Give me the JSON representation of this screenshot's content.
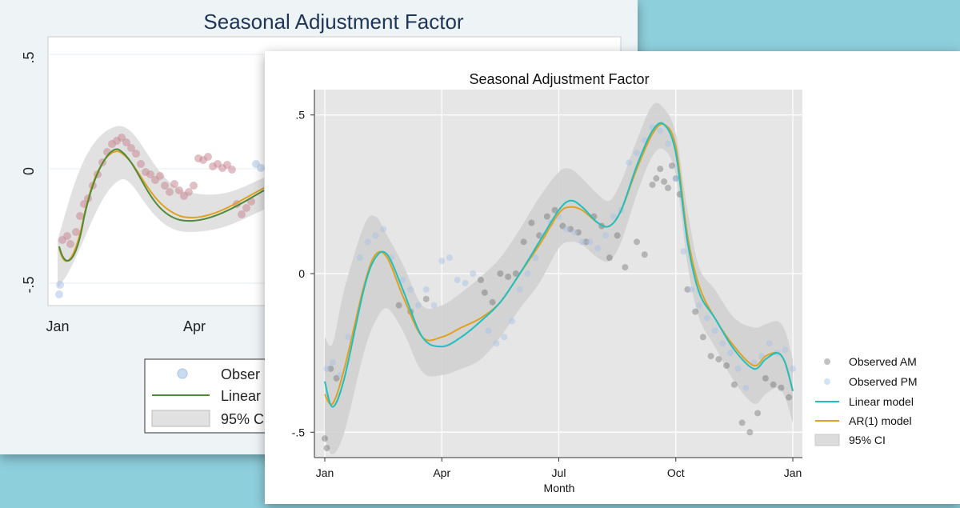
{
  "back_chart": {
    "title": "Seasonal Adjustment Factor",
    "y_ticks": [
      ".5",
      "0",
      "-.5"
    ],
    "x_ticks": [
      "Jan",
      "Apr"
    ],
    "legend": [
      "Obser",
      "Linear",
      "95% C"
    ],
    "colors": {
      "points": "#c98b93",
      "points_alt": "#a9c4e6",
      "linear": "#4f8a3a",
      "ar1": "#e0a020",
      "ci": "#dcdcdc"
    }
  },
  "chart_data": {
    "type": "line",
    "title": "Seasonal Adjustment Factor",
    "xlabel": "Month",
    "ylabel": "",
    "xlim": [
      0,
      12
    ],
    "ylim": [
      -0.58,
      0.58
    ],
    "x_ticks": [
      {
        "pos": 0,
        "label": "Jan"
      },
      {
        "pos": 3,
        "label": "Apr"
      },
      {
        "pos": 6,
        "label": "Jul"
      },
      {
        "pos": 9,
        "label": "Oct"
      },
      {
        "pos": 12,
        "label": "Jan"
      }
    ],
    "y_ticks": [
      {
        "value": 0.5,
        "label": ".5"
      },
      {
        "value": 0,
        "label": "0"
      },
      {
        "value": -0.5,
        "label": "-.5"
      }
    ],
    "grid": true,
    "legend_position": "right",
    "series": [
      {
        "name": "Linear model",
        "color": "#1fbfbf",
        "x": [
          0,
          0.2,
          0.5,
          1.0,
          1.3,
          1.6,
          2.0,
          2.5,
          3.0,
          3.5,
          4.0,
          4.5,
          5.0,
          5.5,
          6.0,
          6.3,
          6.6,
          7.0,
          7.3,
          7.6,
          8.0,
          8.4,
          8.7,
          9.0,
          9.3,
          9.6,
          10.0,
          10.5,
          11.0,
          11.3,
          11.6,
          11.8,
          12.0
        ],
        "y": [
          -0.34,
          -0.42,
          -0.33,
          -0.05,
          0.05,
          0.06,
          -0.05,
          -0.2,
          -0.23,
          -0.2,
          -0.15,
          -0.09,
          0.0,
          0.1,
          0.2,
          0.23,
          0.21,
          0.16,
          0.15,
          0.2,
          0.34,
          0.45,
          0.47,
          0.38,
          0.1,
          -0.06,
          -0.14,
          -0.24,
          -0.3,
          -0.27,
          -0.25,
          -0.28,
          -0.37
        ]
      },
      {
        "name": "AR(1) model",
        "color": "#e0a020",
        "x": [
          0,
          0.2,
          0.5,
          1.0,
          1.3,
          1.6,
          2.0,
          2.5,
          3.0,
          3.5,
          4.0,
          4.5,
          5.0,
          5.5,
          6.0,
          6.3,
          6.6,
          7.0,
          7.3,
          7.6,
          8.0,
          8.4,
          8.7,
          9.0,
          9.3,
          9.6,
          10.0,
          10.5,
          11.0,
          11.3,
          11.6,
          11.8,
          12.0
        ],
        "y": [
          -0.38,
          -0.41,
          -0.3,
          -0.04,
          0.06,
          0.05,
          -0.07,
          -0.2,
          -0.2,
          -0.17,
          -0.14,
          -0.09,
          0.0,
          0.09,
          0.19,
          0.21,
          0.2,
          0.16,
          0.15,
          0.2,
          0.33,
          0.44,
          0.47,
          0.4,
          0.12,
          -0.04,
          -0.14,
          -0.23,
          -0.29,
          -0.26,
          -0.25,
          -0.28,
          -0.37
        ]
      }
    ],
    "ci": {
      "name": "95% CI",
      "color": "#cfcfcf",
      "x": [
        0,
        0.2,
        0.5,
        1.0,
        1.3,
        1.6,
        2.0,
        2.5,
        3.0,
        3.5,
        4.0,
        4.5,
        5.0,
        5.5,
        6.0,
        6.3,
        6.6,
        7.0,
        7.3,
        7.6,
        8.0,
        8.4,
        8.7,
        9.0,
        9.3,
        9.6,
        10.0,
        10.5,
        11.0,
        11.3,
        11.6,
        11.8,
        12.0
      ],
      "upper": [
        -0.2,
        -0.22,
        -0.05,
        0.15,
        0.18,
        0.12,
        0.03,
        -0.1,
        -0.1,
        -0.06,
        -0.01,
        0.05,
        0.14,
        0.24,
        0.32,
        0.33,
        0.3,
        0.25,
        0.23,
        0.29,
        0.42,
        0.53,
        0.52,
        0.44,
        0.2,
        0.02,
        -0.05,
        -0.14,
        -0.17,
        -0.16,
        -0.15,
        -0.18,
        -0.27
      ],
      "lower": [
        -0.52,
        -0.57,
        -0.5,
        -0.25,
        -0.15,
        -0.11,
        -0.18,
        -0.31,
        -0.32,
        -0.3,
        -0.27,
        -0.2,
        -0.11,
        -0.03,
        0.08,
        0.1,
        0.09,
        0.05,
        0.04,
        0.1,
        0.25,
        0.37,
        0.39,
        0.31,
        0.03,
        -0.14,
        -0.23,
        -0.34,
        -0.41,
        -0.38,
        -0.36,
        -0.39,
        -0.47
      ]
    },
    "scatter": [
      {
        "name": "Observed AM",
        "color": "#555555",
        "x": [
          0.0,
          0.05,
          0.15,
          0.3,
          1.9,
          2.2,
          2.6,
          4.0,
          4.1,
          4.3,
          4.5,
          4.7,
          4.9,
          5.1,
          5.3,
          5.5,
          5.7,
          5.9,
          6.1,
          6.3,
          6.5,
          6.7,
          6.9,
          7.1,
          7.3,
          7.5,
          7.7,
          8.0,
          8.2,
          8.4,
          8.5,
          8.6,
          8.7,
          8.8,
          8.9,
          9.0,
          9.1,
          9.3,
          9.5,
          9.7,
          9.9,
          10.1,
          10.3,
          10.5,
          10.7,
          10.9,
          11.1,
          11.3,
          11.5,
          11.7,
          11.9
        ],
        "y": [
          -0.52,
          -0.55,
          -0.3,
          -0.33,
          -0.1,
          -0.12,
          -0.08,
          -0.02,
          -0.06,
          -0.09,
          0.0,
          -0.01,
          0.0,
          0.1,
          0.16,
          0.12,
          0.18,
          0.2,
          0.15,
          0.14,
          0.13,
          0.1,
          0.18,
          0.15,
          0.05,
          0.12,
          0.02,
          0.1,
          0.06,
          0.28,
          0.3,
          0.33,
          0.29,
          0.27,
          0.34,
          0.3,
          0.25,
          -0.05,
          -0.12,
          -0.2,
          -0.26,
          -0.27,
          -0.29,
          -0.35,
          -0.47,
          -0.5,
          -0.44,
          -0.33,
          -0.35,
          -0.36,
          -0.39
        ]
      },
      {
        "name": "Observed PM",
        "color": "#a9c4e6",
        "x": [
          0.05,
          0.2,
          0.4,
          0.6,
          0.9,
          1.1,
          1.3,
          1.5,
          1.7,
          2.0,
          2.2,
          2.4,
          2.6,
          2.8,
          3.0,
          3.2,
          3.4,
          3.6,
          3.8,
          4.2,
          4.4,
          4.6,
          4.8,
          5.0,
          5.2,
          5.4,
          5.6,
          5.8,
          6.0,
          6.2,
          6.4,
          6.6,
          6.8,
          7.0,
          7.2,
          7.4,
          7.6,
          7.8,
          8.0,
          8.2,
          8.4,
          8.6,
          8.8,
          9.0,
          9.2,
          9.4,
          9.6,
          9.8,
          10.0,
          10.2,
          10.4,
          10.6,
          10.8,
          11.0,
          11.2,
          11.4,
          11.6,
          11.8,
          12.0
        ],
        "y": [
          -0.3,
          -0.28,
          -0.32,
          -0.2,
          0.05,
          0.1,
          0.12,
          0.14,
          0.05,
          -0.02,
          -0.05,
          -0.1,
          -0.05,
          -0.1,
          0.04,
          0.05,
          -0.02,
          -0.03,
          0.0,
          -0.18,
          -0.22,
          -0.2,
          -0.15,
          -0.05,
          0.0,
          0.05,
          0.12,
          0.16,
          0.18,
          0.14,
          0.13,
          0.1,
          0.1,
          0.08,
          0.12,
          0.18,
          0.2,
          0.35,
          0.38,
          0.42,
          0.46,
          0.45,
          0.41,
          0.3,
          0.07,
          -0.05,
          -0.1,
          -0.14,
          -0.18,
          -0.22,
          -0.25,
          -0.3,
          -0.36,
          -0.28,
          -0.26,
          -0.22,
          -0.25,
          -0.24,
          -0.3
        ]
      }
    ]
  }
}
